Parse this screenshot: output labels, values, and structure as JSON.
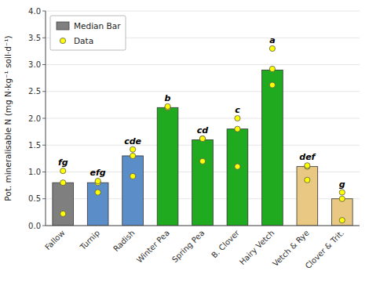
{
  "chart_data": {
    "type": "bar",
    "y_label": "Pot. mineralisable N (mg N·kg⁻¹ soil·d⁻¹)",
    "categories": [
      "Fallow",
      "Turnip",
      "Radish",
      "Winter Pea",
      "Spring Pea",
      "B. Clover",
      "Hairy Vetch",
      "Vetch & Rye",
      "Clover & Trit."
    ],
    "series": [
      {
        "name": "Median Bar",
        "type": "bar",
        "color": "#7f7f7f",
        "colors": [
          "#7f7f7f",
          "#5b8ec9",
          "#5b8ec9",
          "#1faa1f",
          "#1faa1f",
          "#1faa1f",
          "#1faa1f",
          "#e8c882",
          "#e8c882"
        ],
        "values": [
          0.8,
          0.8,
          1.3,
          2.2,
          1.6,
          1.8,
          2.9,
          1.1,
          0.5
        ]
      },
      {
        "name": "Data",
        "type": "scatter",
        "color": "#ffff00",
        "values": [
          [
            0.22,
            0.8,
            1.02
          ],
          [
            0.62,
            0.8,
            0.83
          ],
          [
            0.92,
            1.3,
            1.42
          ],
          [
            2.2,
            2.2,
            2.22
          ],
          [
            1.2,
            1.62,
            1.62
          ],
          [
            1.1,
            1.8,
            2.0
          ],
          [
            2.62,
            2.92,
            3.3
          ],
          [
            0.85,
            1.1,
            1.12
          ],
          [
            0.1,
            0.5,
            0.62
          ]
        ]
      }
    ],
    "annotations": [
      "fg",
      "efg",
      "cde",
      "b",
      "cd",
      "c",
      "a",
      "def",
      "g"
    ],
    "ylim": [
      0.0,
      4.0
    ],
    "yticks": [
      {
        "value": 0.0,
        "label": "0.0"
      },
      0.5,
      {
        "value": 1.0,
        "label": "1.0"
      },
      1.5,
      {
        "value": 2.0,
        "label": "2.0"
      },
      2.5,
      {
        "value": 3.0,
        "label": "3.0"
      },
      3.5,
      {
        "value": 4.0,
        "label": "4.0"
      }
    ],
    "legend": "upper left"
  }
}
